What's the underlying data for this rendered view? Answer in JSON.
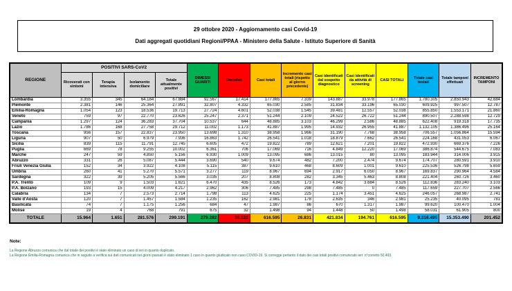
{
  "header": {
    "line1": "29 ottobre 2020 - Aggiornamento casi Covid-19",
    "line2": "Dati aggregati quotidiani Regioni/PPAA - Ministero della Salute - Istituto Superiore di Sanità"
  },
  "table": {
    "col_region": "REGIONE",
    "group_header": "POSITIVI SARS-CoV2",
    "columns": [
      "Ricoverati con sintomi",
      "Terapia intensiva",
      "Isolamento domiciliare",
      "Totale attualmente positivi",
      "DIMESSI GUARITI",
      "Deceduti",
      "Casi totali",
      "Incremento casi totali (rispetto al giorno precedente)",
      "Casi identificati dal sospetto diagnostico",
      "Casi identificati da attività di screening",
      "CASI TOTALI",
      "Totale casi testati",
      "Totale tamponi effettuati",
      "INCREMENTO TAMPONI"
    ],
    "rows": [
      {
        "region": "Lombardia",
        "values": [
          "3.355",
          "345",
          "64.184",
          "67.884",
          "92.567",
          "17.414",
          "177.865",
          "7.339",
          "143.887",
          "33.978",
          "177.865",
          "1.780.305",
          "2.850.943",
          "42.684"
        ]
      },
      {
        "region": "Piemonte",
        "values": [
          "2.381",
          "146",
          "25.364",
          "27.891",
          "32.807",
          "4.332",
          "65.030",
          "2.585",
          "31.834",
          "33.196",
          "65.030",
          "609.925",
          "997.507",
          "12.787"
        ]
      },
      {
        "region": "Emilia-Romagna",
        "values": [
          "1.054",
          "123",
          "18.536",
          "19.713",
          "27.724",
          "4.601",
          "52.038",
          "1.545",
          "39.481",
          "12.557",
          "52.038",
          "855.850",
          "1.553.171",
          "21.860"
        ]
      },
      {
        "region": "Veneto",
        "values": [
          "759",
          "97",
          "22.770",
          "23.626",
          "25.247",
          "2.371",
          "51.244",
          "2.109",
          "24.522",
          "26.722",
          "51.244",
          "890.507",
          "2.288.598",
          "12.729"
        ]
      },
      {
        "region": "Campania",
        "values": [
          "1.297",
          "124",
          "36.283",
          "37.704",
          "10.537",
          "644",
          "48.885",
          "3.103",
          "46.299",
          "2.586",
          "48.885",
          "622.408",
          "919.318",
          "17.735"
        ]
      },
      {
        "region": "Lazio",
        "values": [
          "1.786",
          "168",
          "27.758",
          "29.712",
          "11.002",
          "1.173",
          "41.887",
          "1.995",
          "14.932",
          "26.955",
          "41.887",
          "1.132.105",
          "1.386.496",
          "25.164"
        ]
      },
      {
        "region": "Toscana",
        "values": [
          "956",
          "157",
          "22.837",
          "23.950",
          "13.698",
          "1.310",
          "38.958",
          "1.966",
          "31.190",
          "7.768",
          "38.958",
          "706.557",
          "1.056.864",
          "15.594"
        ]
      },
      {
        "region": "Liguria",
        "values": [
          "907",
          "50",
          "6.979",
          "7.936",
          "16.863",
          "1.742",
          "26.541",
          "1.018",
          "18.879",
          "7.662",
          "26.541",
          "224.168",
          "431.053",
          "6.067"
        ]
      },
      {
        "region": "Sicilia",
        "values": [
          "839",
          "115",
          "11.791",
          "12.745",
          "6.605",
          "472",
          "19.822",
          "789",
          "12.621",
          "7.201",
          "19.822",
          "472.930",
          "669.376",
          "7.226"
        ]
      },
      {
        "region": "Puglia",
        "values": [
          "669",
          "78",
          "9.255",
          "10.002",
          "6.361",
          "706",
          "17.069",
          "716",
          "4.849",
          "12.220",
          "17.069",
          "386.874",
          "544.675",
          "7.083"
        ]
      },
      {
        "region": "Marche",
        "values": [
          "247",
          "59",
          "4.850",
          "5.156",
          "6.930",
          "1.009",
          "13.095",
          "686",
          "13.015",
          "80",
          "13.095",
          "183.944",
          "314.006",
          "3.915"
        ]
      },
      {
        "region": "Abruzzo",
        "values": [
          "331",
          "26",
          "5.087",
          "5.444",
          "3.690",
          "540",
          "9.674",
          "482",
          "7.200",
          "2.474",
          "9.674",
          "174.707",
          "280.591",
          "3.910"
        ]
      },
      {
        "region": "Friuli Venezia Giulia",
        "values": [
          "152",
          "34",
          "3.922",
          "4.108",
          "5.115",
          "387",
          "9.610",
          "468",
          "8.609",
          "1.001",
          "9.610",
          "225.536",
          "526.798",
          "5.659"
        ]
      },
      {
        "region": "Umbria",
        "values": [
          "260",
          "41",
          "5.270",
          "5.571",
          "3.277",
          "119",
          "8.967",
          "694",
          "2.917",
          "6.050",
          "8.967",
          "169.837",
          "290.964",
          "4.584"
        ]
      },
      {
        "region": "Sardegna",
        "values": [
          "322",
          "39",
          "5.205",
          "5.566",
          "3.035",
          "207",
          "8.808",
          "282",
          "3.345",
          "5.463",
          "8.808",
          "221.404",
          "260.726",
          "3.460"
        ]
      },
      {
        "region": "P.A. Trento",
        "values": [
          "109",
          "9",
          "1.503",
          "1.621",
          "6.470",
          "435",
          "8.526",
          "173",
          "4.842",
          "3.684",
          "8.526",
          "112.836",
          "283.240",
          "3.103"
        ]
      },
      {
        "region": "P.A. Bolzano",
        "values": [
          "193",
          "15",
          "4.009",
          "4.217",
          "2.962",
          "306",
          "7.485",
          "298",
          "7.485",
          "0",
          "7.485",
          "117.659",
          "227.707",
          "2.566"
        ]
      },
      {
        "region": "Calabria",
        "values": [
          "134",
          "7",
          "2.573",
          "2.714",
          "1.798",
          "113",
          "4.625",
          "225",
          "1.174",
          "3.451",
          "4.625",
          "246.057",
          "268.987",
          "2.741"
        ]
      },
      {
        "region": "Valle d'Aosta",
        "values": [
          "120",
          "7",
          "1.457",
          "1.584",
          "1.235",
          "162",
          "2.981",
          "178",
          "2.635",
          "346",
          "2.981",
          "25.235",
          "40.095",
          "781"
        ]
      },
      {
        "region": "Basilicata",
        "values": [
          "74",
          "7",
          "1.175",
          "1.256",
          "684",
          "47",
          "1.987",
          "86",
          "670",
          "1.317",
          "1.987",
          "99.620",
          "100.470",
          "1.004"
        ]
      },
      {
        "region": "Molise",
        "values": [
          "19",
          "4",
          "768",
          "791",
          "675",
          "32",
          "1.498",
          "94",
          "1.448",
          "50",
          "1.498",
          "58.031",
          "61.905",
          "800"
        ]
      }
    ],
    "total": {
      "region": "TOTALE",
      "values": [
        "15.964",
        "1.651",
        "281.576",
        "299.191",
        "279.282",
        "38.122",
        "616.595",
        "26.831",
        "421.834",
        "194.761",
        "616.595",
        "9.316.495",
        "15.353.490",
        "201.452"
      ]
    }
  },
  "notes": {
    "title": "Note:",
    "lines": [
      "La Regione Abruzzo comunica che dal totale dei positivi è stato eliminato un caso di ieri in quanto duplicato.",
      "La Regione Emilia-Romagna comunica che in seguito a verifica sui dati comunicati nei giorni passati è stato eliminato 1 caso in quanto giudicato non caso COVID-19. Si corregge pertanto il dato dei casi totali positivi comunicato ieri: n°corretto 50.493."
    ]
  },
  "colors": {
    "header_gray_dark": "#BFBFBF",
    "header_gray_light": "#D9D9D9",
    "green_recovered": "#00B050",
    "red_deceased": "#FF0000",
    "orange_cases": "#FFC000",
    "yellow_identified": "#FFFF00",
    "blue_tested": "#00B0F0",
    "lightblue_swabs": "#BDD7EE",
    "note_green": "#217346"
  }
}
